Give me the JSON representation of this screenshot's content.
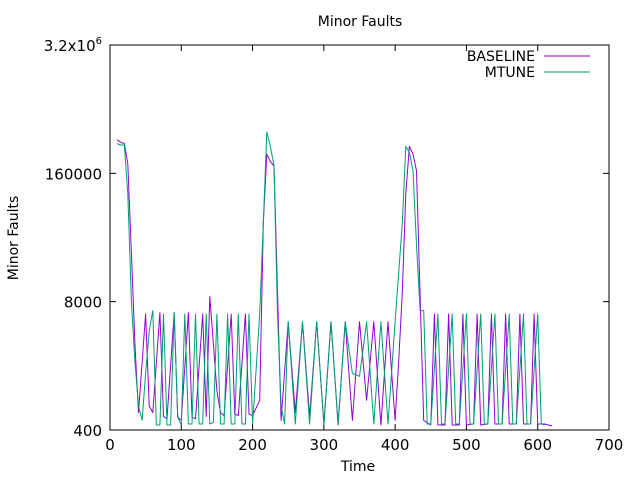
{
  "chart_data": {
    "type": "line",
    "title": "Minor Faults",
    "xlabel": "Time",
    "ylabel": "Minor Faults",
    "xlim": [
      0,
      700
    ],
    "ylim": [
      400,
      3200000
    ],
    "yscale": "log",
    "xticks": [
      0,
      100,
      200,
      300,
      400,
      500,
      600,
      700
    ],
    "yticks": [
      {
        "value": 400,
        "label": "400"
      },
      {
        "value": 8000,
        "label": "8000"
      },
      {
        "value": 160000,
        "label": "160000"
      },
      {
        "value": 3200000,
        "label": "3.2x10",
        "sup": "6"
      }
    ],
    "legend_position": "top-right",
    "grid": false,
    "series": [
      {
        "name": "BASELINE",
        "color": "#9400d3",
        "points": [
          [
            10,
            350000
          ],
          [
            15,
            330000
          ],
          [
            20,
            320000
          ],
          [
            25,
            200000
          ],
          [
            30,
            25000
          ],
          [
            35,
            3000
          ],
          [
            40,
            600
          ],
          [
            50,
            6000
          ],
          [
            55,
            700
          ],
          [
            60,
            600
          ],
          [
            70,
            6200
          ],
          [
            75,
            550
          ],
          [
            80,
            520
          ],
          [
            90,
            6200
          ],
          [
            95,
            540
          ],
          [
            100,
            500
          ],
          [
            110,
            6200
          ],
          [
            115,
            540
          ],
          [
            120,
            520
          ],
          [
            130,
            6000
          ],
          [
            135,
            550
          ],
          [
            140,
            9000
          ],
          [
            150,
            1000
          ],
          [
            155,
            600
          ],
          [
            160,
            560
          ],
          [
            170,
            6000
          ],
          [
            175,
            580
          ],
          [
            180,
            560
          ],
          [
            190,
            6000
          ],
          [
            195,
            580
          ],
          [
            200,
            560
          ],
          [
            210,
            800
          ],
          [
            215,
            50000
          ],
          [
            220,
            250000
          ],
          [
            225,
            210000
          ],
          [
            230,
            190000
          ],
          [
            240,
            500
          ],
          [
            250,
            5000
          ],
          [
            260,
            600
          ],
          [
            270,
            5000
          ],
          [
            280,
            550
          ],
          [
            290,
            5000
          ],
          [
            300,
            450
          ],
          [
            310,
            5000
          ],
          [
            320,
            450
          ],
          [
            330,
            5000
          ],
          [
            340,
            500
          ],
          [
            350,
            5000
          ],
          [
            360,
            800
          ],
          [
            370,
            5000
          ],
          [
            380,
            450
          ],
          [
            390,
            5000
          ],
          [
            400,
            500
          ],
          [
            405,
            2000
          ],
          [
            410,
            10000
          ],
          [
            415,
            100000
          ],
          [
            420,
            300000
          ],
          [
            425,
            250000
          ],
          [
            430,
            170000
          ],
          [
            440,
            500
          ],
          [
            450,
            450
          ],
          [
            455,
            6000
          ],
          [
            460,
            450
          ],
          [
            470,
            450
          ],
          [
            475,
            6000
          ],
          [
            480,
            450
          ],
          [
            490,
            450
          ],
          [
            495,
            6000
          ],
          [
            500,
            450
          ],
          [
            510,
            460
          ],
          [
            515,
            6000
          ],
          [
            520,
            450
          ],
          [
            530,
            460
          ],
          [
            535,
            6000
          ],
          [
            540,
            460
          ],
          [
            550,
            460
          ],
          [
            555,
            6000
          ],
          [
            560,
            460
          ],
          [
            570,
            460
          ],
          [
            575,
            6000
          ],
          [
            580,
            460
          ],
          [
            590,
            460
          ],
          [
            595,
            6000
          ],
          [
            600,
            460
          ],
          [
            610,
            460
          ],
          [
            615,
            450
          ],
          [
            620,
            440
          ]
        ]
      },
      {
        "name": "MTUNE",
        "color": "#009e73",
        "points": [
          [
            10,
            320000
          ],
          [
            15,
            310000
          ],
          [
            20,
            310000
          ],
          [
            25,
            100000
          ],
          [
            30,
            8000
          ],
          [
            35,
            2000
          ],
          [
            40,
            700
          ],
          [
            45,
            500
          ],
          [
            50,
            1500
          ],
          [
            55,
            4000
          ],
          [
            60,
            6500
          ],
          [
            65,
            450
          ],
          [
            70,
            450
          ],
          [
            75,
            6000
          ],
          [
            80,
            450
          ],
          [
            85,
            450
          ],
          [
            90,
            6200
          ],
          [
            95,
            540
          ],
          [
            100,
            450
          ],
          [
            105,
            6000
          ],
          [
            110,
            460
          ],
          [
            115,
            460
          ],
          [
            120,
            6000
          ],
          [
            125,
            460
          ],
          [
            130,
            460
          ],
          [
            135,
            6000
          ],
          [
            140,
            460
          ],
          [
            145,
            480
          ],
          [
            150,
            6000
          ],
          [
            155,
            460
          ],
          [
            160,
            460
          ],
          [
            165,
            6000
          ],
          [
            170,
            460
          ],
          [
            175,
            460
          ],
          [
            180,
            6000
          ],
          [
            185,
            460
          ],
          [
            190,
            460
          ],
          [
            195,
            6000
          ],
          [
            200,
            460
          ],
          [
            210,
            6000
          ],
          [
            215,
            50000
          ],
          [
            220,
            420000
          ],
          [
            225,
            300000
          ],
          [
            230,
            190000
          ],
          [
            235,
            6000
          ],
          [
            240,
            700
          ],
          [
            245,
            460
          ],
          [
            250,
            5000
          ],
          [
            260,
            460
          ],
          [
            270,
            5000
          ],
          [
            280,
            460
          ],
          [
            290,
            5000
          ],
          [
            300,
            460
          ],
          [
            310,
            5000
          ],
          [
            320,
            460
          ],
          [
            330,
            5000
          ],
          [
            340,
            1500
          ],
          [
            350,
            1400
          ],
          [
            360,
            5000
          ],
          [
            370,
            460
          ],
          [
            380,
            5000
          ],
          [
            390,
            460
          ],
          [
            400,
            5000
          ],
          [
            410,
            50000
          ],
          [
            415,
            300000
          ],
          [
            420,
            260000
          ],
          [
            425,
            170000
          ],
          [
            430,
            30000
          ],
          [
            435,
            6500
          ],
          [
            440,
            6500
          ],
          [
            445,
            460
          ],
          [
            450,
            460
          ],
          [
            460,
            6000
          ],
          [
            465,
            460
          ],
          [
            470,
            460
          ],
          [
            480,
            6000
          ],
          [
            485,
            460
          ],
          [
            490,
            460
          ],
          [
            500,
            6000
          ],
          [
            505,
            460
          ],
          [
            510,
            460
          ],
          [
            520,
            6000
          ],
          [
            525,
            460
          ],
          [
            530,
            460
          ],
          [
            540,
            6000
          ],
          [
            545,
            460
          ],
          [
            550,
            460
          ],
          [
            560,
            6000
          ],
          [
            565,
            460
          ],
          [
            570,
            460
          ],
          [
            580,
            6000
          ],
          [
            585,
            460
          ],
          [
            590,
            460
          ],
          [
            600,
            6000
          ],
          [
            605,
            460
          ],
          [
            610,
            450
          ]
        ]
      }
    ]
  }
}
